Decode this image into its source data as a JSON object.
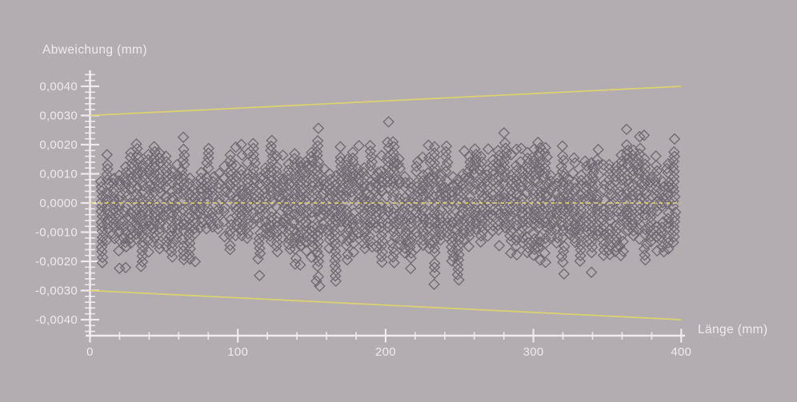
{
  "colors": {
    "background": "#b3acb1",
    "axis": "#f2eef1",
    "text": "#f2eef1",
    "tolerance_line": "#ddd46e",
    "zero_line": "#ddd46e",
    "marker": "#5e5660"
  },
  "chart_data": {
    "type": "scatter",
    "title": "",
    "xlabel": "Länge (mm)",
    "ylabel": "Abweichung (mm)",
    "grid": false,
    "legend": "none",
    "x_axis": {
      "min": 0,
      "max": 400,
      "major_tick_step": 100,
      "minor_tick_step": 20,
      "tick_values": [
        0,
        100,
        200,
        300,
        400
      ],
      "tick_labels": [
        "0",
        "100",
        "200",
        "300",
        "400"
      ]
    },
    "y_axis": {
      "min": -0.0046,
      "max": 0.0046,
      "major_tick_step": 0.001,
      "minor_tick_step": 0.0002,
      "tick_values": [
        0.004,
        0.003,
        0.002,
        0.001,
        0.0,
        -0.001,
        -0.002,
        -0.003,
        -0.004
      ],
      "tick_labels": [
        "0,0040",
        "0,0030",
        "0,0020",
        "0,0010",
        "0,0000",
        "-0,0010",
        "-0,0020",
        "-0,0030",
        "-0,0040"
      ]
    },
    "series": [
      {
        "name": "upper_tolerance",
        "type": "line",
        "style": "solid",
        "color": "#ddd46e",
        "points": [
          [
            0,
            0.003
          ],
          [
            400,
            0.004
          ]
        ]
      },
      {
        "name": "zero_reference",
        "type": "line",
        "style": "dashed",
        "color": "#ddd46e",
        "points": [
          [
            0,
            0.0
          ],
          [
            400,
            0.0
          ]
        ]
      },
      {
        "name": "lower_tolerance",
        "type": "line",
        "style": "solid",
        "color": "#ddd46e",
        "points": [
          [
            0,
            -0.003
          ],
          [
            400,
            -0.004
          ]
        ]
      },
      {
        "name": "measured_deviation",
        "type": "scatter",
        "marker": "open-diamond",
        "color": "#5e5660",
        "x_range_mm": [
          6,
          397
        ],
        "y_typical_range_mm": [
          -0.0025,
          0.0025
        ],
        "y_max_outlier_mm": 0.0029,
        "description": "Dense repeatability cloud: vertical stacks of open diamonds at ~4 mm length intervals, deviations mostly within ±0.002 mm, occasional outliers to ±0.0028 mm",
        "generation": {
          "seed": 987654321,
          "columns": 99,
          "x_start": 8.0,
          "x_step": 3.95,
          "y_step": 0.000172,
          "envelope_min": 0.0008,
          "envelope_extra": 0.0014,
          "boost_chance": 0.1,
          "boost_amount": 0.00045,
          "gap_chance": 0.11,
          "outlier_chance": 0.2,
          "clamp": 0.00285
        }
      }
    ]
  }
}
